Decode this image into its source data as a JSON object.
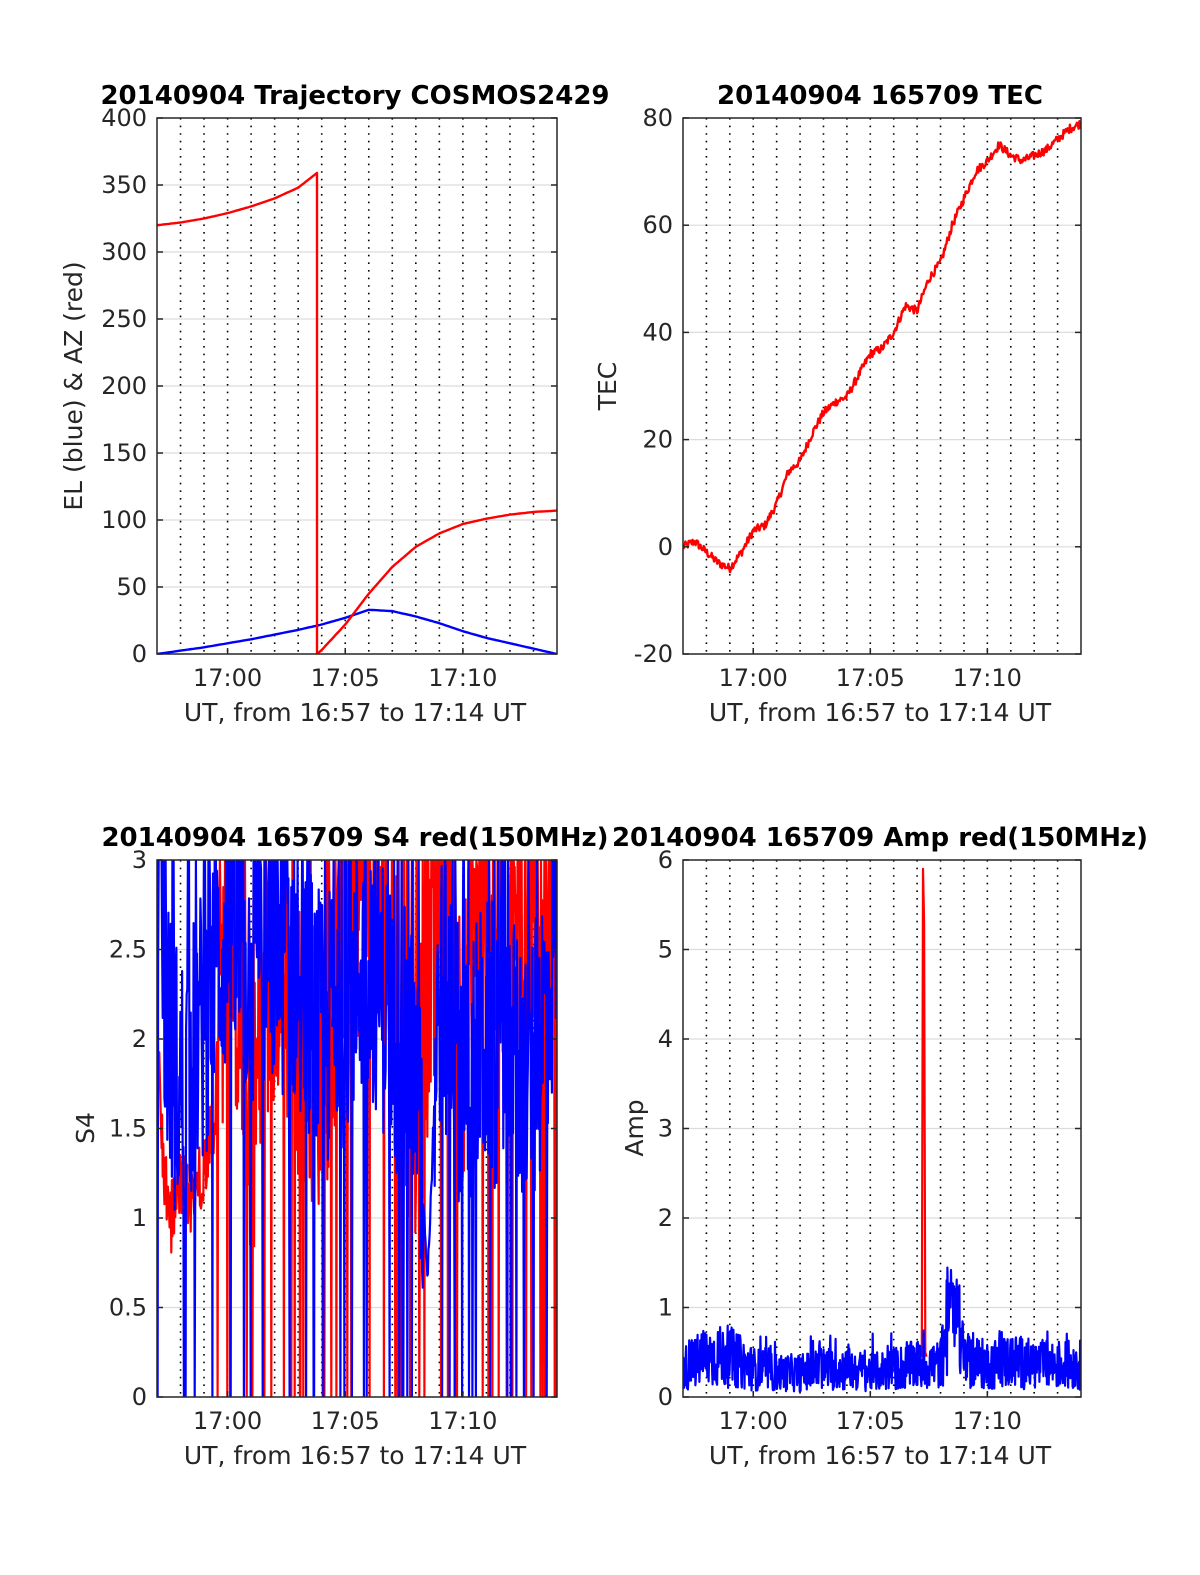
{
  "figure": {
    "colors": {
      "el": "#0000ff",
      "az": "#ff0000",
      "tec": "#ff0000",
      "s4_red": "#ff0000",
      "s4_blue": "#0000ff",
      "amp_red": "#ff0000",
      "amp_blue": "#0000ff"
    }
  },
  "chart_data": [
    {
      "type": "line",
      "title": "20140904 Trajectory COSMOS2429",
      "xlabel": "UT, from 16:57 to 17:14 UT",
      "ylabel": "EL (blue) & AZ (red)",
      "x_unit": "minutes after 16:57 UT",
      "xlim": [
        0,
        17
      ],
      "ylim": [
        0,
        400
      ],
      "xtick_values": [
        3,
        8,
        13
      ],
      "xtick_labels": [
        "17:00",
        "17:05",
        "17:10"
      ],
      "ytick_values": [
        0,
        50,
        100,
        150,
        200,
        250,
        300,
        350,
        400
      ],
      "ytick_labels": [
        "0",
        "50",
        "100",
        "150",
        "200",
        "250",
        "300",
        "350",
        "400"
      ],
      "grid": "dotted vertical every minute, horizontal at ticks",
      "series": [
        {
          "key": "el",
          "x": [
            0,
            2,
            4,
            6,
            7,
            8,
            8.5,
            9,
            10,
            11,
            12,
            13,
            14,
            15,
            16,
            17
          ],
          "y": [
            0,
            5,
            11,
            18,
            22,
            27,
            30,
            33,
            32,
            28,
            23,
            17,
            12,
            8,
            4,
            0
          ]
        },
        {
          "key": "az",
          "x": [
            0,
            1,
            2,
            3,
            4,
            5,
            6,
            6.8,
            6.801,
            7,
            8,
            9,
            10,
            11,
            12,
            13,
            14,
            15,
            16,
            17
          ],
          "y": [
            320,
            322,
            325,
            329,
            334,
            340,
            348,
            359,
            0,
            3,
            22,
            45,
            65,
            80,
            90,
            97,
            101,
            104,
            106,
            107
          ]
        }
      ]
    },
    {
      "type": "line",
      "title": "20140904 165709 TEC",
      "xlabel": "UT, from 16:57 to 17:14 UT",
      "ylabel": "TEC",
      "x_unit": "minutes after 16:57 UT",
      "xlim": [
        0,
        17
      ],
      "ylim": [
        -20,
        80
      ],
      "xtick_values": [
        3,
        8,
        13
      ],
      "xtick_labels": [
        "17:00",
        "17:05",
        "17:10"
      ],
      "ytick_values": [
        -20,
        0,
        20,
        40,
        60,
        80
      ],
      "ytick_labels": [
        "-20",
        "0",
        "20",
        "40",
        "60",
        "80"
      ],
      "series": [
        {
          "key": "tec",
          "x": [
            0,
            0.5,
            1,
            1.5,
            2,
            2.5,
            3,
            3.5,
            4,
            4.5,
            5,
            5.5,
            6,
            6.5,
            7,
            7.5,
            8,
            8.5,
            9,
            9.5,
            10,
            10.5,
            11,
            11.5,
            12,
            12.5,
            13,
            13.5,
            14,
            14.5,
            15,
            15.5,
            16,
            16.5,
            17
          ],
          "y": [
            0,
            1,
            -1,
            -3,
            -4,
            -1,
            3,
            4,
            8,
            14,
            16,
            21,
            25,
            27,
            28,
            32,
            36,
            37,
            40,
            45,
            44,
            50,
            53,
            60,
            65,
            70,
            72,
            75,
            73,
            72,
            73,
            74,
            76,
            78,
            79
          ]
        }
      ]
    },
    {
      "type": "line",
      "title": "20140904 165709 S4 red(150MHz)",
      "xlabel": "UT, from 16:57 to 17:14 UT",
      "ylabel": "S4",
      "x_unit": "minutes after 16:57 UT",
      "xlim": [
        0,
        17
      ],
      "ylim": [
        0,
        3
      ],
      "xtick_values": [
        3,
        8,
        13
      ],
      "xtick_labels": [
        "17:00",
        "17:05",
        "17:10"
      ],
      "ytick_values": [
        0,
        0.5,
        1,
        1.5,
        2,
        2.5,
        3
      ],
      "ytick_labels": [
        "0",
        "0.5",
        "1",
        "1.5",
        "2",
        "2.5",
        "3"
      ],
      "series": [
        {
          "key": "s4_red",
          "style": "noisy trace spanning most of the axis",
          "x": [
            0,
            0.3,
            0.6,
            1,
            1.5,
            2,
            2.5,
            3,
            4,
            5,
            6,
            7,
            8,
            9,
            10,
            11,
            12,
            13,
            14,
            15,
            16,
            17
          ],
          "y": [
            2.1,
            1.2,
            1.0,
            1.2,
            1.1,
            1.3,
            1.6,
            2.8,
            1.5,
            2.5,
            2.0,
            1.8,
            2.6,
            2.9,
            2.5,
            1.5,
            2.9,
            2.0,
            2.8,
            2.6,
            2.9,
            2.5
          ]
        },
        {
          "key": "s4_blue",
          "style": "noisy trace",
          "x": [
            0,
            0.3,
            0.6,
            1,
            1.5,
            2,
            2.5,
            3,
            4,
            5,
            6,
            7,
            8,
            9,
            10,
            11,
            11.5,
            12,
            13,
            14,
            15,
            16,
            17
          ],
          "y": [
            2.8,
            2.3,
            1.9,
            1.7,
            1.9,
            2.1,
            2.4,
            2.6,
            2.3,
            2.5,
            2.4,
            2.0,
            2.2,
            2.5,
            2.1,
            1.8,
            0.7,
            2.3,
            1.8,
            2.0,
            1.9,
            1.8,
            2.6
          ]
        }
      ]
    },
    {
      "type": "line",
      "title": "20140904 165709 Amp red(150MHz)",
      "xlabel": "UT, from 16:57 to 17:14 UT",
      "ylabel": "Amp",
      "x_unit": "minutes after 16:57 UT",
      "xlim": [
        0,
        17
      ],
      "ylim": [
        0,
        6
      ],
      "xtick_values": [
        3,
        8,
        13
      ],
      "xtick_labels": [
        "17:00",
        "17:05",
        "17:10"
      ],
      "ytick_values": [
        0,
        1,
        2,
        3,
        4,
        5,
        6
      ],
      "ytick_labels": [
        "0",
        "1",
        "2",
        "3",
        "4",
        "5",
        "6"
      ],
      "series": [
        {
          "key": "amp_red",
          "style": "single spike",
          "x": [
            10.2,
            10.25,
            10.3,
            10.35,
            10.4
          ],
          "y": [
            0.45,
            5.9,
            5.3,
            0.5,
            0.45
          ]
        },
        {
          "key": "amp_blue",
          "style": "noisy baseline with burst",
          "x": [
            0,
            1,
            2,
            3,
            4,
            5,
            6,
            7,
            8,
            9,
            10,
            11,
            11.5,
            12,
            13,
            14,
            15,
            16,
            17
          ],
          "y": [
            0.35,
            0.5,
            0.5,
            0.35,
            0.3,
            0.3,
            0.35,
            0.35,
            0.3,
            0.35,
            0.4,
            0.4,
            1.3,
            0.45,
            0.4,
            0.45,
            0.4,
            0.4,
            0.4
          ]
        }
      ]
    }
  ]
}
